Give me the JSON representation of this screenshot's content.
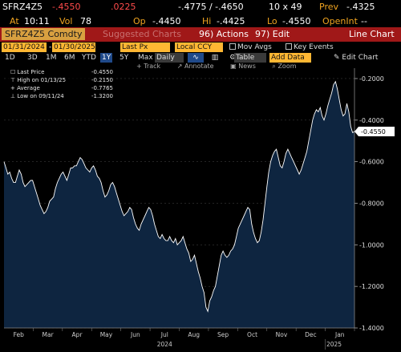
{
  "quote": {
    "ticker": "SFRZ4Z5",
    "last": "-.4550",
    "change": ".0225",
    "bid_ask": "-.4775 / -.4650",
    "size": "10 x 49",
    "prev_label": "Prev",
    "prev": "-.4325",
    "at_label": "At",
    "time": "10:11",
    "vol_label": "Vol",
    "vol": "78",
    "op_label": "Op",
    "open": "-.4450",
    "hi_label": "Hi",
    "high": "-.4425",
    "lo_label": "Lo",
    "low": "-.4550",
    "openint_label": "OpenInt",
    "openint": "--"
  },
  "titlebar": {
    "security": "SFRZ4Z5 Comdty",
    "suggested": "Suggested Charts",
    "actions": "96) Actions",
    "edit": "97) Edit",
    "view": "Line Chart"
  },
  "controls": {
    "start_date": "01/31/2024",
    "end_date": "01/30/2025",
    "field": "Last Px",
    "currency": "Local CCY",
    "mov_avgs": "Mov Avgs",
    "key_events": "Key Events",
    "periods": [
      "1D",
      "3D",
      "1M",
      "6M",
      "YTD",
      "1Y",
      "5Y",
      "Max"
    ],
    "active_period": "1Y",
    "frequency": "Daily",
    "table": "Table",
    "add_data": "Add Data",
    "edit_chart": "Edit Chart"
  },
  "tools": {
    "track": "Track",
    "annotate": "Annotate",
    "news": "News",
    "zoom": "Zoom"
  },
  "legend": [
    {
      "label": "Last Price",
      "value": "-0.4550"
    },
    {
      "label": "High on 01/13/25",
      "value": "-0.2150"
    },
    {
      "label": "Average",
      "value": "-0.7765"
    },
    {
      "label": "Low on 09/11/24",
      "value": "-1.3200"
    }
  ],
  "colors": {
    "accent": "#f0a420",
    "title_bg": "#a01818",
    "area_fill": "#0e2540",
    "line": "#ffffff",
    "down": "#ff4b4b"
  },
  "chart_data": {
    "type": "area",
    "title": "",
    "xlabel": "",
    "ylabel": "",
    "ylim": [
      -1.4,
      -0.15
    ],
    "yticks": [
      -1.4,
      -1.2,
      -1.0,
      -0.8,
      -0.6,
      -0.4,
      -0.2
    ],
    "ytick_labels": [
      "-1.4000",
      "-1.2000",
      "-1.0000",
      "-0.8000",
      "-0.6000",
      "-0.4000",
      "-0.2000"
    ],
    "x_month_labels": [
      "Feb",
      "Mar",
      "Apr",
      "May",
      "Jun",
      "Jul",
      "Aug",
      "Sep",
      "Oct",
      "Nov",
      "Dec",
      "Jan"
    ],
    "x_year_labels": [
      {
        "text": "2024",
        "month_index": 5.5
      },
      {
        "text": "2025",
        "month_index": 11.3
      }
    ],
    "last_value_label": "-0.4550",
    "series": [
      {
        "values": [
          -0.6,
          -0.63,
          -0.66,
          -0.65,
          -0.68,
          -0.7,
          -0.7,
          -0.67,
          -0.64,
          -0.66,
          -0.7,
          -0.72,
          -0.71,
          -0.7,
          -0.69,
          -0.69,
          -0.72,
          -0.75,
          -0.78,
          -0.81,
          -0.83,
          -0.85,
          -0.84,
          -0.82,
          -0.79,
          -0.78,
          -0.77,
          -0.73,
          -0.7,
          -0.68,
          -0.66,
          -0.65,
          -0.67,
          -0.69,
          -0.66,
          -0.63,
          -0.63,
          -0.62,
          -0.62,
          -0.6,
          -0.58,
          -0.59,
          -0.61,
          -0.63,
          -0.64,
          -0.65,
          -0.63,
          -0.62,
          -0.64,
          -0.67,
          -0.68,
          -0.7,
          -0.74,
          -0.77,
          -0.76,
          -0.74,
          -0.71,
          -0.7,
          -0.72,
          -0.75,
          -0.78,
          -0.81,
          -0.84,
          -0.86,
          -0.85,
          -0.84,
          -0.82,
          -0.83,
          -0.87,
          -0.9,
          -0.92,
          -0.93,
          -0.9,
          -0.88,
          -0.86,
          -0.84,
          -0.82,
          -0.83,
          -0.86,
          -0.9,
          -0.93,
          -0.96,
          -0.97,
          -0.95,
          -0.97,
          -0.98,
          -0.98,
          -0.96,
          -0.98,
          -0.99,
          -0.97,
          -1.0,
          -0.99,
          -0.98,
          -0.96,
          -0.99,
          -1.02,
          -1.04,
          -1.08,
          -1.07,
          -1.05,
          -1.09,
          -1.13,
          -1.16,
          -1.2,
          -1.23,
          -1.3,
          -1.32,
          -1.27,
          -1.25,
          -1.22,
          -1.2,
          -1.15,
          -1.1,
          -1.05,
          -1.03,
          -1.05,
          -1.06,
          -1.05,
          -1.03,
          -1.02,
          -1.0,
          -0.96,
          -0.92,
          -0.9,
          -0.88,
          -0.86,
          -0.84,
          -0.82,
          -0.83,
          -0.9,
          -0.94,
          -0.97,
          -0.99,
          -0.98,
          -0.94,
          -0.88,
          -0.8,
          -0.72,
          -0.65,
          -0.6,
          -0.57,
          -0.55,
          -0.54,
          -0.58,
          -0.62,
          -0.63,
          -0.6,
          -0.56,
          -0.54,
          -0.56,
          -0.58,
          -0.6,
          -0.62,
          -0.64,
          -0.66,
          -0.64,
          -0.61,
          -0.58,
          -0.55,
          -0.5,
          -0.45,
          -0.4,
          -0.37,
          -0.35,
          -0.36,
          -0.34,
          -0.38,
          -0.4,
          -0.37,
          -0.33,
          -0.3,
          -0.27,
          -0.23,
          -0.215,
          -0.25,
          -0.3,
          -0.35,
          -0.38,
          -0.37,
          -0.32,
          -0.36,
          -0.43,
          -0.46,
          -0.455
        ]
      }
    ]
  }
}
